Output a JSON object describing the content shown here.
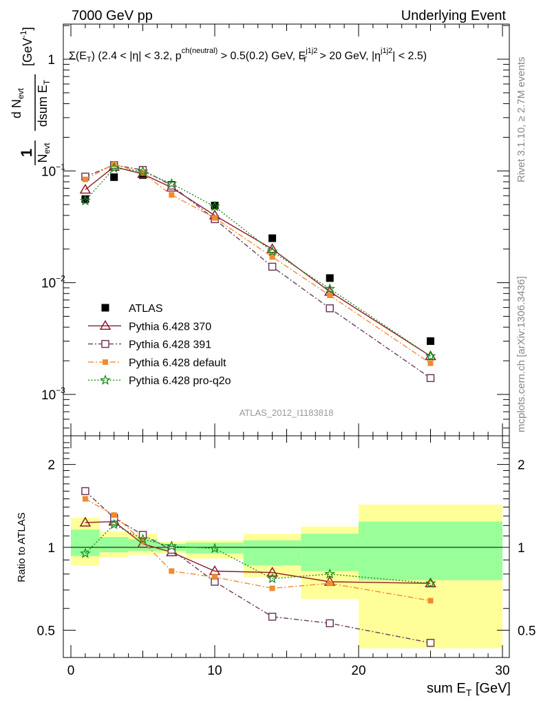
{
  "header": {
    "left": "7000 GeV pp",
    "right": "Underlying Event"
  },
  "main_plot": {
    "selection_label": "Σ(E_T) (2.4 < |η| < 3.2, p^ch(neutral) > 0.5(0.2) GeV, E_T^j1j2 > 20 GeV, |η^j1j2| < 2.5)",
    "y_axis_label": "1/N_evt d N_evt / dsum E_T [GeV^-1]",
    "analysis_id": "ATLAS_2012_I1183818",
    "y_ticks": [
      "10^-3",
      "10^-2",
      "10^-1",
      "1"
    ]
  },
  "side_labels": {
    "rivet": "Rivet 3.1.10, ≥ 2.7M events",
    "mcplots": "mcplots.cern.ch [arXiv:1306.3436]"
  },
  "ratio_plot": {
    "y_axis_label": "Ratio to ATLAS",
    "y_ticks": [
      "0.5",
      "1",
      "2"
    ]
  },
  "x_axis": {
    "label": "sum E_T [GeV]",
    "ticks": [
      "0",
      "10",
      "20",
      "30"
    ]
  },
  "legend": [
    {
      "name": "ATLAS",
      "color": "#000000",
      "marker": "filled-square"
    },
    {
      "name": "Pythia 6.428 370",
      "color": "#8b1a2b",
      "marker": "open-triangle"
    },
    {
      "name": "Pythia 6.428 391",
      "color": "#6b3a5b",
      "marker": "open-square"
    },
    {
      "name": "Pythia 6.428 default",
      "color": "#f28a2e",
      "marker": "filled-square-small"
    },
    {
      "name": "Pythia 6.428 pro-q2o",
      "color": "#1a8c1a",
      "marker": "open-star"
    }
  ],
  "chart_data": [
    {
      "type": "line",
      "scale": "log",
      "x": [
        1,
        3,
        5,
        7,
        10,
        14,
        18,
        25
      ],
      "xlim": [
        -1,
        30
      ],
      "ylim": [
        0.0004,
        2.0
      ],
      "series": [
        {
          "name": "ATLAS",
          "values": [
            0.056,
            0.088,
            0.092,
            0.075,
            0.049,
            0.025,
            0.011,
            0.003
          ]
        },
        {
          "name": "Pythia 6.428 370",
          "values": [
            0.068,
            0.109,
            0.094,
            0.071,
            0.04,
            0.02,
            0.0083,
            0.0022
          ]
        },
        {
          "name": "Pythia 6.428 391",
          "values": [
            0.089,
            0.113,
            0.102,
            0.074,
            0.037,
            0.0139,
            0.0059,
            0.0014
          ]
        },
        {
          "name": "Pythia 6.428 default",
          "values": [
            0.084,
            0.115,
            0.096,
            0.061,
            0.038,
            0.017,
            0.0077,
            0.0019
          ]
        },
        {
          "name": "Pythia 6.428 pro-q2o",
          "values": [
            0.054,
            0.106,
            0.099,
            0.077,
            0.048,
            0.019,
            0.0088,
            0.0022
          ]
        }
      ]
    },
    {
      "type": "line",
      "scale": "log",
      "x": [
        1,
        3,
        5,
        7,
        10,
        14,
        18,
        25
      ],
      "xlim": [
        -1,
        30
      ],
      "ylim": [
        0.4,
        2.4
      ],
      "reference_line": 1,
      "bands": {
        "bins": [
          [
            0,
            2
          ],
          [
            2,
            4
          ],
          [
            4,
            6
          ],
          [
            6,
            8
          ],
          [
            8,
            12
          ],
          [
            12,
            16
          ],
          [
            16,
            20
          ],
          [
            20,
            30
          ]
        ],
        "yellow": [
          [
            0.86,
            1.28
          ],
          [
            0.92,
            1.14
          ],
          [
            0.94,
            1.12
          ],
          [
            0.95,
            1.05
          ],
          [
            0.91,
            1.06
          ],
          [
            0.78,
            1.12
          ],
          [
            0.65,
            1.19
          ],
          [
            0.43,
            1.43
          ]
        ],
        "green": [
          [
            0.93,
            1.16
          ],
          [
            0.96,
            1.09
          ],
          [
            0.97,
            1.07
          ],
          [
            0.97,
            1.03
          ],
          [
            0.95,
            1.04
          ],
          [
            0.86,
            1.06
          ],
          [
            0.82,
            1.12
          ],
          [
            0.76,
            1.24
          ]
        ]
      },
      "series": [
        {
          "name": "Pythia 6.428 370",
          "values": [
            1.23,
            1.24,
            1.03,
            0.96,
            0.82,
            0.81,
            0.75,
            0.74
          ]
        },
        {
          "name": "Pythia 6.428 391",
          "values": [
            1.6,
            1.28,
            1.11,
            0.98,
            0.75,
            0.56,
            0.53,
            0.45
          ]
        },
        {
          "name": "Pythia 6.428 default",
          "values": [
            1.5,
            1.31,
            1.05,
            0.82,
            0.78,
            0.71,
            0.74,
            0.64
          ]
        },
        {
          "name": "Pythia 6.428 pro-q2o",
          "values": [
            0.95,
            1.21,
            1.07,
            1.01,
            0.99,
            0.77,
            0.8,
            0.74
          ]
        }
      ]
    }
  ]
}
